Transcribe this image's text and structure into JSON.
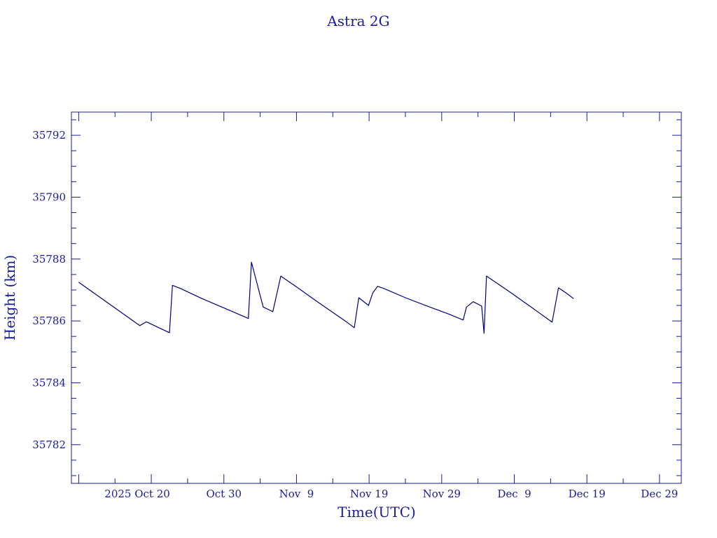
{
  "chart_data": {
    "type": "line",
    "title": "Astra 2G",
    "xlabel": "Time(UTC)",
    "ylabel": "Height (km)",
    "colors": {
      "line": "#00007f",
      "text": "#1a1a9c",
      "axis": "#1a1a9c"
    },
    "x_range": [
      "2025-10-09",
      "2026-01-01"
    ],
    "ylim": [
      35780.75,
      35792.75
    ],
    "grid": false,
    "x_ticks": [
      {
        "date": "2025-10-20",
        "label": "2025 Oct 20"
      },
      {
        "date": "2025-10-30",
        "label": "Oct 30"
      },
      {
        "date": "2025-11-09",
        "label": "Nov  9"
      },
      {
        "date": "2025-11-19",
        "label": "Nov 19"
      },
      {
        "date": "2025-11-29",
        "label": "Nov 29"
      },
      {
        "date": "2025-12-09",
        "label": "Dec  9"
      },
      {
        "date": "2025-12-19",
        "label": "Dec 19"
      },
      {
        "date": "2025-12-29",
        "label": "Dec 29"
      }
    ],
    "y_ticks": [
      35782,
      35784,
      35786,
      35788,
      35790,
      35792
    ],
    "series": [
      {
        "points": [
          [
            "2025-10-10T00:00",
            35787.25
          ],
          [
            "2025-10-18T10:00",
            35785.85
          ],
          [
            "2025-10-19T08:00",
            35785.97
          ],
          [
            "2025-10-22T12:00",
            35785.62
          ],
          [
            "2025-10-22T22:00",
            35787.15
          ],
          [
            "2025-10-24T00:00",
            35787.05
          ],
          [
            "2025-10-27T00:00",
            35786.72
          ],
          [
            "2025-10-30T00:00",
            35786.42
          ],
          [
            "2025-11-02T09:00",
            35786.08
          ],
          [
            "2025-11-02T19:00",
            35787.9
          ],
          [
            "2025-11-04T10:00",
            35786.45
          ],
          [
            "2025-11-05T18:00",
            35786.3
          ],
          [
            "2025-11-06T20:00",
            35787.45
          ],
          [
            "2025-11-09T00:00",
            35787.1
          ],
          [
            "2025-11-12T00:00",
            35786.6
          ],
          [
            "2025-11-16T00:00",
            35785.95
          ],
          [
            "2025-11-16T23:00",
            35785.78
          ],
          [
            "2025-11-17T14:00",
            35786.75
          ],
          [
            "2025-11-18T22:00",
            35786.5
          ],
          [
            "2025-11-19T12:00",
            35786.9
          ],
          [
            "2025-11-20T04:00",
            35787.12
          ],
          [
            "2025-11-21T00:00",
            35787.05
          ],
          [
            "2025-11-24T00:00",
            35786.75
          ],
          [
            "2025-11-27T00:00",
            35786.48
          ],
          [
            "2025-11-30T00:00",
            35786.22
          ],
          [
            "2025-12-01T23:00",
            35786.03
          ],
          [
            "2025-12-02T10:00",
            35786.45
          ],
          [
            "2025-12-03T08:00",
            35786.62
          ],
          [
            "2025-12-04T12:00",
            35786.48
          ],
          [
            "2025-12-04T20:00",
            35785.6
          ],
          [
            "2025-12-05T04:00",
            35787.45
          ],
          [
            "2025-12-08T00:00",
            35787.0
          ],
          [
            "2025-12-11T00:00",
            35786.5
          ],
          [
            "2025-12-14T05:00",
            35785.96
          ],
          [
            "2025-12-15T02:00",
            35787.07
          ],
          [
            "2025-12-16T04:00",
            35786.9
          ],
          [
            "2025-12-17T04:00",
            35786.72
          ]
        ]
      }
    ]
  }
}
